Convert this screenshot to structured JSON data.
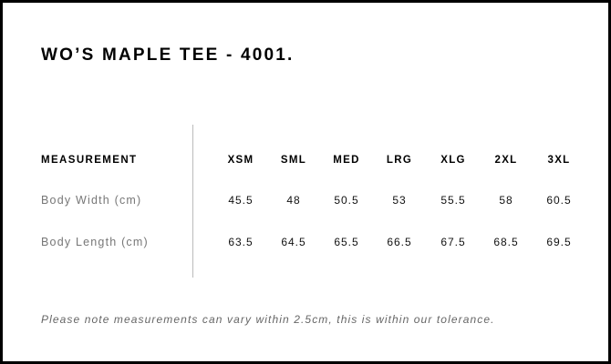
{
  "title": "WO’S MAPLE TEE - 4001.",
  "table": {
    "header_label": "MEASUREMENT",
    "sizes": [
      "XSM",
      "SML",
      "MED",
      "LRG",
      "XLG",
      "2XL",
      "3XL"
    ],
    "rows": [
      {
        "label": "Body Width (cm)",
        "values": [
          "45.5",
          "48",
          "50.5",
          "53",
          "55.5",
          "58",
          "60.5"
        ]
      },
      {
        "label": "Body Length (cm)",
        "values": [
          "63.5",
          "64.5",
          "65.5",
          "66.5",
          "67.5",
          "68.5",
          "69.5"
        ]
      }
    ]
  },
  "note": "Please note measurements can vary within 2.5cm, this is within our tolerance."
}
